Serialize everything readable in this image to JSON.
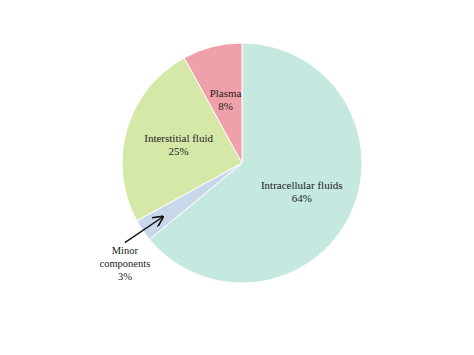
{
  "chart_data": {
    "type": "pie",
    "categories": [
      "Intracellular fluids",
      "Minor\ncomponents",
      "Interstitial fluid",
      "Plasma"
    ],
    "values": [
      64,
      3,
      25,
      8
    ],
    "value_labels": [
      "64%",
      "3%",
      "25%",
      "8%"
    ],
    "colors": [
      "#c5e8e0",
      "#c8d8ea",
      "#d6e8a8",
      "#f0a0a8"
    ],
    "data_labels": true
  }
}
